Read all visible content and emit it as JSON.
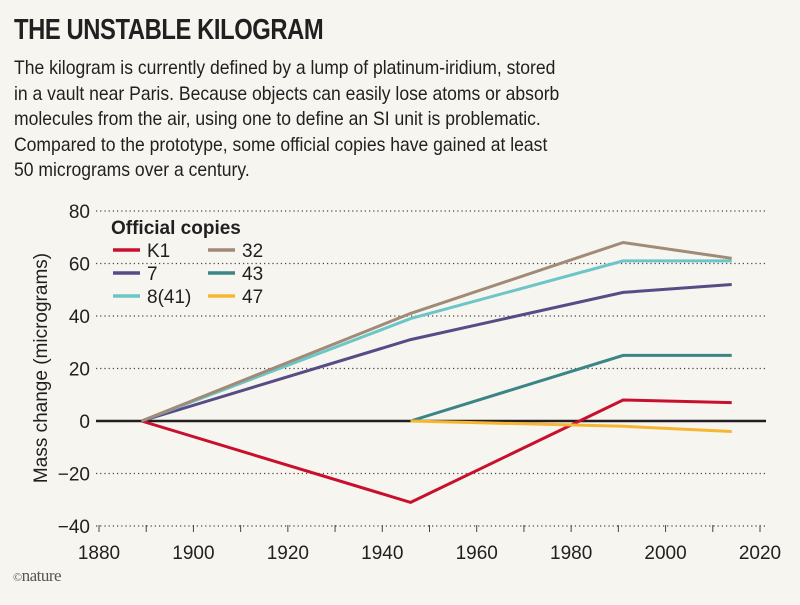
{
  "header": {
    "title": "THE UNSTABLE KILOGRAM",
    "subtitle_lines": [
      "The kilogram is currently defined by a lump of platinum-iridium, stored",
      "in a vault near Paris. Because objects can easily lose atoms or absorb",
      "molecules from the air, using one to define an SI unit is problematic.",
      "Compared to the prototype, some official copies have gained at least",
      "50 micrograms over a century."
    ]
  },
  "credit": {
    "symbol": "©",
    "text": "nature"
  },
  "chart_data": {
    "type": "line",
    "title": "THE UNSTABLE KILOGRAM",
    "xlabel": "",
    "ylabel": "Mass change (micrograms)",
    "xlim": [
      1880,
      2020
    ],
    "ylim": [
      -40,
      80
    ],
    "xticks": [
      1880,
      1900,
      1920,
      1940,
      1960,
      1980,
      2000,
      2020
    ],
    "xminor_step": 10,
    "yticks": [
      -40,
      -20,
      0,
      20,
      40,
      60,
      80
    ],
    "grid": "horizontal-dotted",
    "legend": {
      "title": "Official copies",
      "placement": "top-left",
      "columns": 2
    },
    "series": [
      {
        "name": "K1",
        "color": "#c8102e",
        "points": [
          [
            1889,
            0
          ],
          [
            1946,
            -31
          ],
          [
            1991,
            8
          ],
          [
            2014,
            7
          ]
        ]
      },
      {
        "name": "7",
        "color": "#574c86",
        "points": [
          [
            1889,
            0
          ],
          [
            1946,
            31
          ],
          [
            1991,
            49
          ],
          [
            2014,
            52
          ]
        ]
      },
      {
        "name": "8(41)",
        "color": "#6cc5c6",
        "points": [
          [
            1889,
            0
          ],
          [
            1946,
            39
          ],
          [
            1991,
            61
          ],
          [
            2014,
            61
          ]
        ]
      },
      {
        "name": "32",
        "color": "#a08a78",
        "points": [
          [
            1889,
            0
          ],
          [
            1946,
            41
          ],
          [
            1991,
            68
          ],
          [
            2014,
            62
          ]
        ]
      },
      {
        "name": "43",
        "color": "#3b8586",
        "points": [
          [
            1946,
            0
          ],
          [
            1991,
            25
          ],
          [
            2014,
            25
          ]
        ]
      },
      {
        "name": "47",
        "color": "#f5b731",
        "points": [
          [
            1946,
            0
          ],
          [
            1991,
            -2
          ],
          [
            2014,
            -4
          ]
        ]
      }
    ]
  }
}
